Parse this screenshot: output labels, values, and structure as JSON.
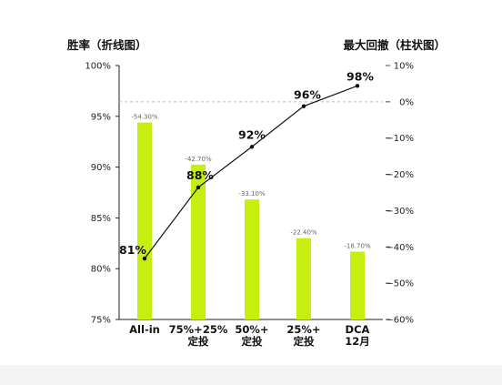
{
  "chart_data": {
    "type": "bar+line",
    "left_axis_title": "胜率（折线图）",
    "right_axis_title": "最大回撤（柱状图）",
    "categories": [
      [
        "All-in"
      ],
      [
        "75%+25%",
        "定投"
      ],
      [
        "50%+",
        "定投"
      ],
      [
        "25%+",
        "定投"
      ],
      [
        "DCA",
        "12月"
      ]
    ],
    "line_series": {
      "axis": "left",
      "values": [
        81,
        88,
        92,
        96,
        98
      ],
      "labels": [
        "81%",
        "88%",
        "92%",
        "96%",
        "98%"
      ],
      "color": "#111111"
    },
    "bar_series": {
      "axis": "right",
      "values": [
        -54.3,
        -42.7,
        -33.1,
        -22.4,
        -18.7
      ],
      "labels": [
        "-54.30%",
        "-42.70%",
        "-33.10%",
        "-22.40%",
        "-18.70%"
      ],
      "color": "#c6ef0f"
    },
    "left_axis": {
      "ylim": [
        75,
        100
      ],
      "ticks": [
        100,
        95,
        90,
        85,
        80,
        75
      ],
      "tick_labels": [
        "100%",
        "95%",
        "90%",
        "85%",
        "80%",
        "75%"
      ]
    },
    "right_axis": {
      "ylim": [
        -60,
        10
      ],
      "ticks": [
        10,
        0,
        -10,
        -20,
        -30,
        -40,
        -50,
        -60
      ],
      "tick_labels": [
        "10%",
        "0%",
        "−10%",
        "−20%",
        "−30%",
        "−40%",
        "−50%",
        "−60%"
      ]
    },
    "reference_line": {
      "axis": "right",
      "value": 0,
      "style": "dashed"
    },
    "grid": false,
    "legend": "none"
  }
}
